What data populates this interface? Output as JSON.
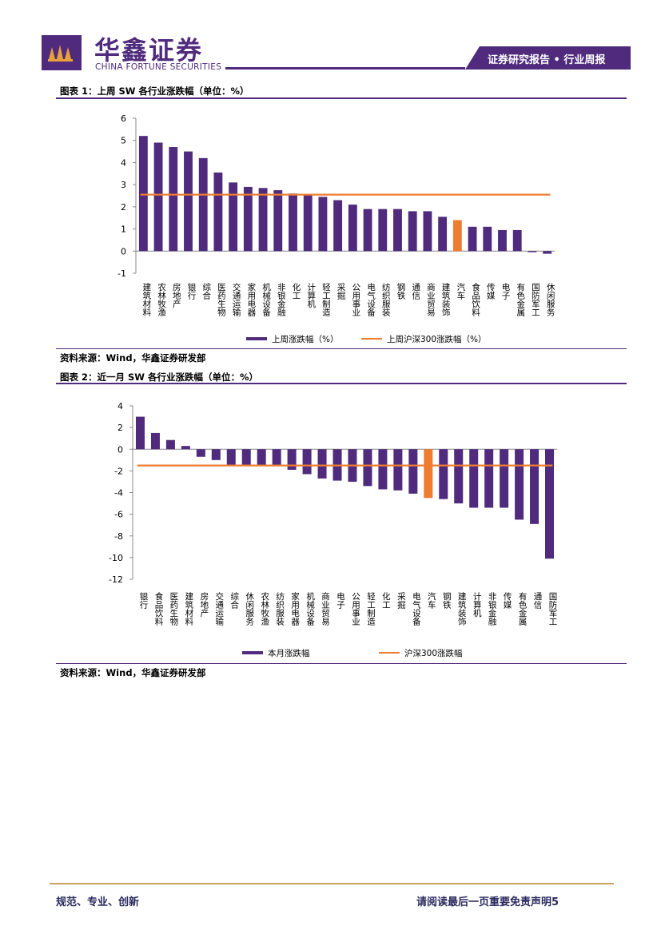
{
  "header": {
    "logo_cn": "华鑫证券",
    "logo_en": "CHINA FORTUNE SECURITIES",
    "report_type": "证券研究报告 • 行业周报"
  },
  "colors": {
    "brand": "#4f2a7d",
    "bar": "#4f2a7d",
    "highlight": "#ed7d31",
    "line": "#ed7d31",
    "footer_rule": "#c9a461"
  },
  "figure1": {
    "caption": "图表 1：上周 SW 各行业涨跌幅（单位：%）",
    "source": "资料来源：Wind，华鑫证券研发部"
  },
  "figure2": {
    "caption": "图表 2：近一月 SW 各行业涨跌幅（单位：%）",
    "source": "资料来源：Wind，华鑫证券研发部"
  },
  "footer": {
    "left": "规范、专业、创新",
    "right": "请阅读最后一页重要免责声明",
    "page": "5"
  },
  "chart_data": [
    {
      "type": "bar",
      "title": "上周SW各行业涨跌幅",
      "categories": [
        "建筑材料",
        "农林牧渔",
        "房地产",
        "银行",
        "综合",
        "医药生物",
        "交通运输",
        "家用电器",
        "机械设备",
        "非银金融",
        "化工",
        "计算机",
        "轻工制造",
        "采掘",
        "公用事业",
        "电气设备",
        "纺织服装",
        "钢铁",
        "通信",
        "商业贸易",
        "建筑装饰",
        "汽车",
        "食品饮料",
        "传媒",
        "电子",
        "有色金属",
        "国防军工",
        "休闲服务"
      ],
      "series": [
        {
          "name": "上周涨跌幅（%）",
          "values": [
            5.2,
            4.9,
            4.7,
            4.5,
            4.2,
            3.55,
            3.1,
            2.9,
            2.85,
            2.75,
            2.6,
            2.55,
            2.45,
            2.3,
            2.1,
            1.9,
            1.9,
            1.9,
            1.8,
            1.8,
            1.55,
            1.4,
            1.1,
            1.1,
            0.95,
            0.95,
            -0.05,
            -0.12
          ]
        },
        {
          "name": "上周沪深300涨跌幅（%）",
          "type": "line",
          "value": 2.55
        }
      ],
      "highlight": "汽车",
      "yticks": [
        6,
        5,
        4,
        3,
        2,
        1,
        0,
        -1
      ],
      "ylim": [
        -1,
        6
      ],
      "legend": [
        "上周涨跌幅（%）",
        "上周沪深300涨跌幅（%）"
      ]
    },
    {
      "type": "bar",
      "title": "近一月SW各行业涨跌幅",
      "categories": [
        "银行",
        "食品饮料",
        "医药生物",
        "建筑材料",
        "房地产",
        "交通运输",
        "综合",
        "休闲服务",
        "农林牧渔",
        "纺织服装",
        "家用电器",
        "机械设备",
        "商业贸易",
        "电子",
        "公用事业",
        "轻工制造",
        "化工",
        "采掘",
        "电气设备",
        "汽车",
        "钢铁",
        "建筑装饰",
        "计算机",
        "非银金融",
        "传媒",
        "有色金属",
        "通信",
        "国防军工"
      ],
      "series": [
        {
          "name": "本月涨跌幅",
          "values": [
            3.0,
            1.5,
            0.85,
            0.3,
            -0.7,
            -1.0,
            -1.5,
            -1.5,
            -1.5,
            -1.5,
            -1.9,
            -2.3,
            -2.7,
            -2.9,
            -3.0,
            -3.4,
            -3.7,
            -3.8,
            -4.1,
            -4.5,
            -4.6,
            -5.0,
            -5.4,
            -5.4,
            -5.4,
            -6.5,
            -6.9,
            -10.1
          ]
        },
        {
          "name": "沪深300涨跌幅",
          "type": "line",
          "value": -1.5
        }
      ],
      "highlight": "汽车",
      "yticks": [
        4,
        2,
        0,
        -2,
        -4,
        -6,
        -8,
        -10,
        -12
      ],
      "ylim": [
        -12,
        4
      ],
      "legend": [
        "本月涨跌幅",
        "沪深300涨跌幅"
      ]
    }
  ]
}
